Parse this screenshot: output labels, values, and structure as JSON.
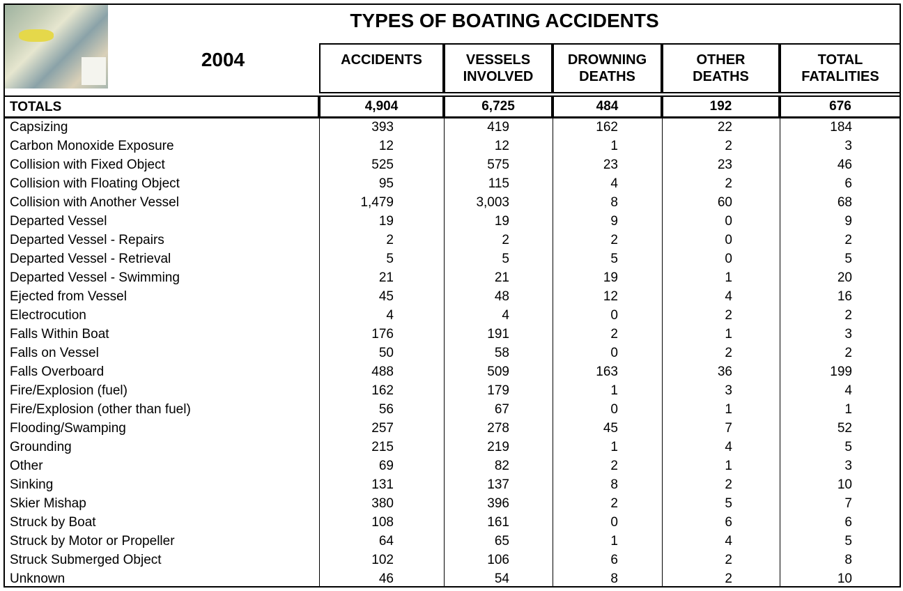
{
  "header": {
    "title": "TYPES OF BOATING ACCIDENTS",
    "year": "2004",
    "columns": [
      [
        "ACCIDENTS"
      ],
      [
        "VESSELS",
        "INVOLVED"
      ],
      [
        "DROWNING",
        "DEATHS"
      ],
      [
        "OTHER",
        "DEATHS"
      ],
      [
        "TOTAL",
        "FATALITIES"
      ]
    ]
  },
  "totals": {
    "label": "TOTALS",
    "values": [
      "4,904",
      "6,725",
      "484",
      "192",
      "676"
    ]
  },
  "rows": [
    {
      "label": "Capsizing",
      "values": [
        "393",
        "419",
        "162",
        "22",
        "184"
      ]
    },
    {
      "label": "Carbon Monoxide Exposure",
      "values": [
        "12",
        "12",
        "1",
        "2",
        "3"
      ]
    },
    {
      "label": "Collision with Fixed Object",
      "values": [
        "525",
        "575",
        "23",
        "23",
        "46"
      ]
    },
    {
      "label": "Collision with Floating Object",
      "values": [
        "95",
        "115",
        "4",
        "2",
        "6"
      ]
    },
    {
      "label": "Collision with Another Vessel",
      "values": [
        "1,479",
        "3,003",
        "8",
        "60",
        "68"
      ]
    },
    {
      "label": "Departed Vessel",
      "values": [
        "19",
        "19",
        "9",
        "0",
        "9"
      ]
    },
    {
      "label": "Departed Vessel - Repairs",
      "values": [
        "2",
        "2",
        "2",
        "0",
        "2"
      ]
    },
    {
      "label": "Departed Vessel - Retrieval",
      "values": [
        "5",
        "5",
        "5",
        "0",
        "5"
      ]
    },
    {
      "label": "Departed Vessel - Swimming",
      "values": [
        "21",
        "21",
        "19",
        "1",
        "20"
      ]
    },
    {
      "label": "Ejected from Vessel",
      "values": [
        "45",
        "48",
        "12",
        "4",
        "16"
      ]
    },
    {
      "label": "Electrocution",
      "values": [
        "4",
        "4",
        "0",
        "2",
        "2"
      ]
    },
    {
      "label": "Falls Within Boat",
      "values": [
        "176",
        "191",
        "2",
        "1",
        "3"
      ]
    },
    {
      "label": "Falls on Vessel",
      "values": [
        "50",
        "58",
        "0",
        "2",
        "2"
      ]
    },
    {
      "label": "Falls Overboard",
      "values": [
        "488",
        "509",
        "163",
        "36",
        "199"
      ]
    },
    {
      "label": "Fire/Explosion (fuel)",
      "values": [
        "162",
        "179",
        "1",
        "3",
        "4"
      ]
    },
    {
      "label": "Fire/Explosion (other than fuel)",
      "values": [
        "56",
        "67",
        "0",
        "1",
        "1"
      ]
    },
    {
      "label": "Flooding/Swamping",
      "values": [
        "257",
        "278",
        "45",
        "7",
        "52"
      ]
    },
    {
      "label": "Grounding",
      "values": [
        "215",
        "219",
        "1",
        "4",
        "5"
      ]
    },
    {
      "label": "Other",
      "values": [
        "69",
        "82",
        "2",
        "1",
        "3"
      ]
    },
    {
      "label": "Sinking",
      "values": [
        "131",
        "137",
        "8",
        "2",
        "10"
      ]
    },
    {
      "label": "Skier Mishap",
      "values": [
        "380",
        "396",
        "2",
        "5",
        "7"
      ]
    },
    {
      "label": "Struck by Boat",
      "values": [
        "108",
        "161",
        "0",
        "6",
        "6"
      ]
    },
    {
      "label": "Struck by Motor or Propeller",
      "values": [
        "64",
        "65",
        "1",
        "4",
        "5"
      ]
    },
    {
      "label": "Struck Submerged Object",
      "values": [
        "102",
        "106",
        "6",
        "2",
        "8"
      ]
    },
    {
      "label": "Unknown",
      "values": [
        "46",
        "54",
        "8",
        "2",
        "10"
      ]
    }
  ]
}
